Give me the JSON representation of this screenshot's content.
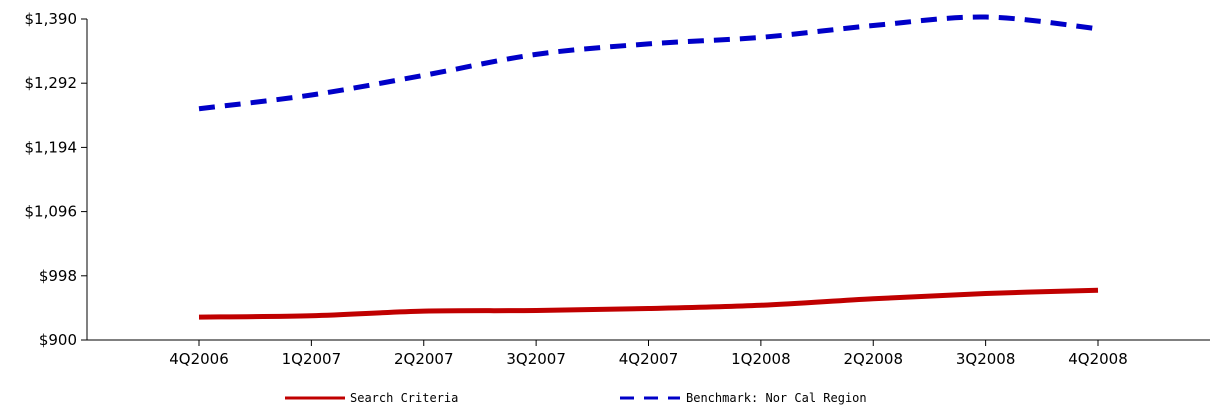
{
  "chart_data": {
    "type": "line",
    "title": "",
    "xlabel": "",
    "ylabel": "",
    "categories": [
      "4Q2006",
      "1Q2007",
      "2Q2007",
      "3Q2007",
      "4Q2007",
      "1Q2008",
      "2Q2008",
      "3Q2008",
      "4Q2008"
    ],
    "yticks": [
      "$900",
      "$998",
      "$1,096",
      "$1,194",
      "$1,292",
      "$1,390"
    ],
    "ylim": [
      900,
      1390
    ],
    "grid": false,
    "legend_position": "bottom",
    "series": [
      {
        "name": "Search Criteria",
        "color": "#c00000",
        "line_style": "solid",
        "values": [
          935,
          937,
          944,
          945,
          948,
          953,
          963,
          971,
          976
        ]
      },
      {
        "name": "Benchmark: Nor Cal Region",
        "color": "#0000c8",
        "line_style": "dashed",
        "values": [
          1253,
          1274,
          1304,
          1336,
          1352,
          1362,
          1380,
          1393,
          1375
        ]
      }
    ]
  }
}
